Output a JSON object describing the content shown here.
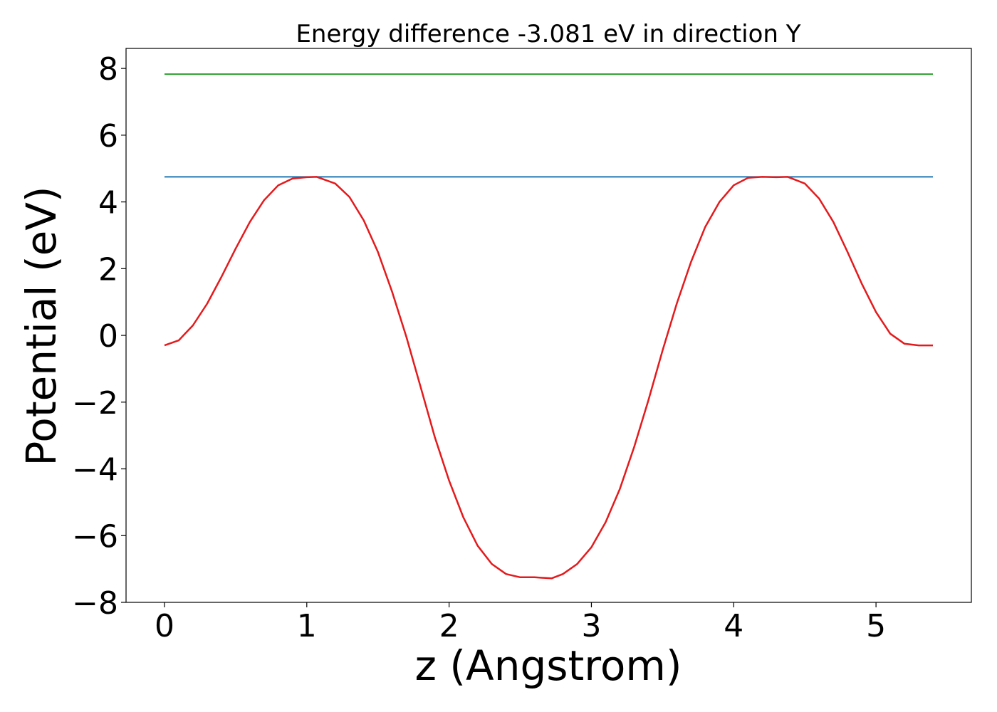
{
  "chart_data": {
    "type": "line",
    "title": "Energy difference -3.081 eV in direction Y",
    "xlabel": "z (Angstrom)",
    "ylabel": "Potential (eV)",
    "xlim": [
      -0.27,
      5.67
    ],
    "ylim": [
      -8.0,
      8.6
    ],
    "xticks": [
      0,
      1,
      2,
      3,
      4,
      5
    ],
    "xtick_labels": [
      "0",
      "1",
      "2",
      "3",
      "4",
      "5"
    ],
    "yticks": [
      -8,
      -6,
      -4,
      -2,
      0,
      2,
      4,
      6,
      8
    ],
    "ytick_labels": [
      "−8",
      "−6",
      "−4",
      "−2",
      "0",
      "2",
      "4",
      "6",
      "8"
    ],
    "grid": false,
    "legend": "none",
    "colors": {
      "potential": "#e41a1c",
      "barrier": "#1f77b4",
      "upper": "#2ca02c",
      "frame": "#000000"
    },
    "series": [
      {
        "color": "#2ca02c",
        "x": [
          0,
          5.4
        ],
        "y": [
          7.83,
          7.83
        ]
      },
      {
        "color": "#1f77b4",
        "x": [
          0,
          5.4
        ],
        "y": [
          4.75,
          4.75
        ]
      },
      {
        "color": "#e41a1c",
        "x": [
          0,
          0.1,
          0.2,
          0.3,
          0.4,
          0.5,
          0.6,
          0.7,
          0.8,
          0.9,
          1.0,
          1.07,
          1.2,
          1.3,
          1.4,
          1.5,
          1.6,
          1.7,
          1.8,
          1.9,
          2.0,
          2.1,
          2.2,
          2.3,
          2.4,
          2.5,
          2.6,
          2.72,
          2.8,
          2.9,
          3.0,
          3.1,
          3.2,
          3.3,
          3.4,
          3.5,
          3.6,
          3.7,
          3.8,
          3.9,
          4.0,
          4.1,
          4.2,
          4.3,
          4.38,
          4.5,
          4.6,
          4.7,
          4.8,
          4.9,
          5.0,
          5.1,
          5.2,
          5.3,
          5.4
        ],
        "y": [
          -0.3,
          -0.15,
          0.3,
          0.95,
          1.75,
          2.6,
          3.4,
          4.05,
          4.5,
          4.7,
          4.74,
          4.75,
          4.55,
          4.15,
          3.45,
          2.5,
          1.3,
          -0.05,
          -1.55,
          -3.05,
          -4.35,
          -5.45,
          -6.3,
          -6.85,
          -7.15,
          -7.25,
          -7.25,
          -7.28,
          -7.15,
          -6.85,
          -6.35,
          -5.6,
          -4.6,
          -3.35,
          -1.95,
          -0.45,
          0.95,
          2.2,
          3.25,
          4.0,
          4.5,
          4.72,
          4.75,
          4.74,
          4.75,
          4.55,
          4.1,
          3.4,
          2.5,
          1.55,
          0.7,
          0.05,
          -0.25,
          -0.3,
          -0.3
        ]
      }
    ]
  }
}
